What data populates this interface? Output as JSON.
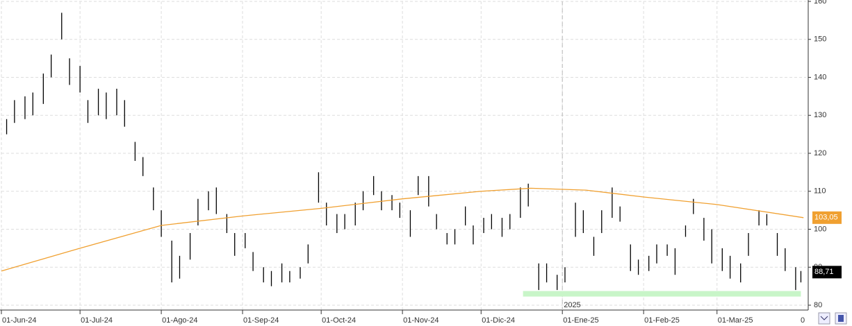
{
  "chart_data": {
    "type": "ohlc",
    "xlim": [
      "2024-06-01",
      "2025-04-04"
    ],
    "xticks": [
      {
        "value": "2024-06-01",
        "label": "01-Jun-24"
      },
      {
        "value": "2024-07-01",
        "label": "01-Jul-24"
      },
      {
        "value": "2024-08-01",
        "label": "01-Ago-24"
      },
      {
        "value": "2024-09-01",
        "label": "01-Sep-24"
      },
      {
        "value": "2024-10-01",
        "label": "01-Oct-24"
      },
      {
        "value": "2024-11-01",
        "label": "01-Nov-24"
      },
      {
        "value": "2024-12-01",
        "label": "01-Dic-24"
      },
      {
        "value": "2025-01-01",
        "label": "01-Ene-25"
      },
      {
        "value": "2025-02-01",
        "label": "01-Feb-25"
      },
      {
        "value": "2025-03-01",
        "label": "01-Mar-25"
      }
    ],
    "corner_label": "0",
    "ylim": [
      80,
      160
    ],
    "yticks": [
      80,
      90,
      100,
      110,
      120,
      130,
      140,
      150,
      160
    ],
    "grid": true,
    "series": [
      {
        "color": "#000000",
        "x": [
          "2024-06-03",
          "2024-06-06",
          "2024-06-10",
          "2024-06-13",
          "2024-06-17",
          "2024-06-20",
          "2024-06-24",
          "2024-06-27",
          "2024-07-01",
          "2024-07-04",
          "2024-07-08",
          "2024-07-11",
          "2024-07-15",
          "2024-07-18",
          "2024-07-22",
          "2024-07-25",
          "2024-07-29",
          "2024-08-01",
          "2024-08-05",
          "2024-08-08",
          "2024-08-12",
          "2024-08-15",
          "2024-08-19",
          "2024-08-22",
          "2024-08-26",
          "2024-08-29",
          "2024-09-02",
          "2024-09-05",
          "2024-09-09",
          "2024-09-12",
          "2024-09-16",
          "2024-09-19",
          "2024-09-23",
          "2024-09-26",
          "2024-09-30",
          "2024-10-03",
          "2024-10-07",
          "2024-10-10",
          "2024-10-14",
          "2024-10-17",
          "2024-10-21",
          "2024-10-24",
          "2024-10-28",
          "2024-10-31",
          "2024-11-04",
          "2024-11-07",
          "2024-11-11",
          "2024-11-14",
          "2024-11-18",
          "2024-11-21",
          "2024-11-25",
          "2024-11-28",
          "2024-12-02",
          "2024-12-05",
          "2024-12-09",
          "2024-12-12",
          "2024-12-16",
          "2024-12-19",
          "2024-12-23",
          "2024-12-26",
          "2024-12-30",
          "2025-01-02",
          "2025-01-06",
          "2025-01-09",
          "2025-01-13",
          "2025-01-16",
          "2025-01-20",
          "2025-01-23",
          "2025-01-27",
          "2025-01-30",
          "2025-02-03",
          "2025-02-06",
          "2025-02-10",
          "2025-02-13",
          "2025-02-17",
          "2025-02-20",
          "2025-02-24",
          "2025-02-27",
          "2025-03-03",
          "2025-03-06",
          "2025-03-10",
          "2025-03-13",
          "2025-03-17",
          "2025-03-20",
          "2025-03-24",
          "2025-03-27",
          "2025-03-31",
          "2025-04-02"
        ],
        "low": [
          125,
          128,
          129,
          130,
          133,
          140,
          150,
          138,
          136,
          128,
          130,
          129,
          130,
          127,
          118,
          114,
          105,
          98,
          86,
          87,
          92,
          101,
          105,
          104,
          99,
          93,
          95,
          89,
          86,
          85,
          86,
          86,
          87,
          91,
          107,
          101,
          99,
          100,
          101,
          105,
          109,
          105,
          105,
          103,
          98,
          109,
          106,
          100,
          96,
          96,
          101,
          96,
          99,
          100,
          98,
          100,
          103,
          106,
          84,
          86,
          84,
          86,
          98,
          99,
          93,
          99,
          103,
          102,
          89,
          88,
          89,
          91,
          93,
          88,
          98,
          104,
          97,
          91,
          89,
          87,
          86,
          93,
          101,
          101,
          93,
          89,
          84,
          86
        ],
        "high": [
          129,
          134,
          135,
          136,
          141,
          146,
          157,
          145,
          143,
          134,
          137,
          136,
          137,
          134,
          123,
          119,
          111,
          105,
          97,
          93,
          99,
          108,
          110,
          111,
          104,
          99,
          99,
          94,
          90,
          89,
          91,
          89,
          90,
          96,
          115,
          107,
          104,
          104,
          107,
          110,
          114,
          110,
          109,
          107,
          105,
          114,
          114,
          104,
          99,
          100,
          106,
          101,
          103,
          104,
          103,
          104,
          111,
          112,
          91,
          91,
          88,
          90,
          107,
          105,
          98,
          105,
          111,
          106,
          96,
          92,
          93,
          96,
          96,
          95,
          101,
          108,
          103,
          100,
          95,
          93,
          91,
          99,
          105,
          104,
          99,
          95,
          90,
          89
        ]
      },
      {
        "color": "#f0a030",
        "x": [
          "2024-06-01",
          "2024-07-01",
          "2024-08-01",
          "2024-09-01",
          "2024-10-01",
          "2024-11-01",
          "2024-12-01",
          "2024-12-20",
          "2025-01-10",
          "2025-02-01",
          "2025-03-01",
          "2025-04-03"
        ],
        "values": [
          89,
          95,
          101,
          103.5,
          105.5,
          108,
          110,
          110.8,
          110.3,
          108.5,
          106.5,
          103.05
        ]
      }
    ],
    "value_boxes": [
      {
        "value": 103.05,
        "label": "103,05",
        "color": "#f0a030"
      },
      {
        "value": 88.71,
        "label": "88,71",
        "color": "#000000"
      }
    ],
    "band": {
      "from": "2024-12-17",
      "to": "2025-04-02",
      "value": 83,
      "color": "#c8f5c8"
    },
    "year_marker": {
      "date": "2025-01-01",
      "label": "2025"
    }
  }
}
